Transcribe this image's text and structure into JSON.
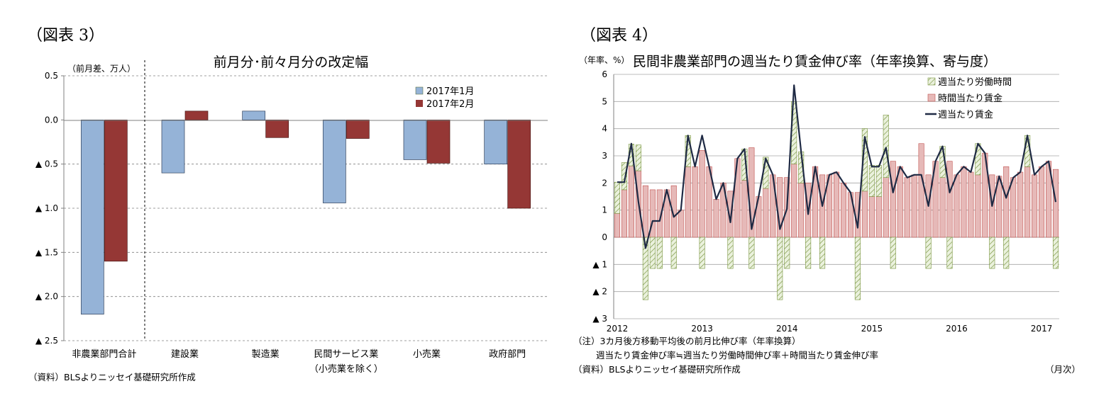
{
  "figures": [
    {
      "label": "（図表 3）"
    },
    {
      "label": "（図表 4）"
    }
  ],
  "chart_data": [
    {
      "type": "bar",
      "title": "前月分･前々月分の改定幅",
      "unit_label": "（前月差、万人）",
      "ylim": [
        -2.5,
        0.5
      ],
      "y_ticks": [
        {
          "value": 0.5,
          "label": "0.5"
        },
        {
          "value": 0.0,
          "label": "0.0"
        },
        {
          "value": -0.5,
          "label": "▲ 0.5"
        },
        {
          "value": -1.0,
          "label": "▲ 1.0"
        },
        {
          "value": -1.5,
          "label": "▲ 1.5"
        },
        {
          "value": -2.0,
          "label": "▲ 2.0"
        },
        {
          "value": -2.5,
          "label": "▲ 2.5"
        }
      ],
      "categories": [
        "非農業部門合計",
        "建設業",
        "製造業",
        "民間サービス業",
        "小売業",
        "政府部門"
      ],
      "category_sublabels": [
        "",
        "",
        "",
        "（小売業を除く）",
        "",
        ""
      ],
      "series": [
        {
          "name": "2017年1月",
          "color": "#95B3D7",
          "values": [
            -2.2,
            -0.6,
            0.1,
            -0.94,
            -0.45,
            -0.5
          ]
        },
        {
          "name": "2017年2月",
          "color": "#953735",
          "values": [
            -1.6,
            0.1,
            -0.2,
            -0.21,
            -0.49,
            -1.0
          ]
        }
      ],
      "grid": "horizontal dashed",
      "legend_position": "top-right",
      "source": "（資料）BLSよりニッセイ基礎研究所作成"
    },
    {
      "type": "bar+line",
      "title": "民間非農業部門の週当たり賃金伸び率（年率換算、寄与度）",
      "unit_label": "（年率、%）",
      "ylim": [
        -3,
        6
      ],
      "y_ticks": [
        {
          "value": 6,
          "label": "6"
        },
        {
          "value": 5,
          "label": "5"
        },
        {
          "value": 4,
          "label": "4"
        },
        {
          "value": 3,
          "label": "3"
        },
        {
          "value": 2,
          "label": "2"
        },
        {
          "value": 1,
          "label": "1"
        },
        {
          "value": 0,
          "label": "0"
        },
        {
          "value": -1,
          "label": "▲ 1"
        },
        {
          "value": -2,
          "label": "▲ 2"
        },
        {
          "value": -3,
          "label": "▲ 3"
        }
      ],
      "x_labels": [
        "2012",
        "2013",
        "2014",
        "2015",
        "2016",
        "2017"
      ],
      "x_unit": "（月次）",
      "months": [
        "2012-01",
        "2012-02",
        "2012-03",
        "2012-04",
        "2012-05",
        "2012-06",
        "2012-07",
        "2012-08",
        "2012-09",
        "2012-10",
        "2012-11",
        "2012-12",
        "2013-01",
        "2013-02",
        "2013-03",
        "2013-04",
        "2013-05",
        "2013-06",
        "2013-07",
        "2013-08",
        "2013-09",
        "2013-10",
        "2013-11",
        "2013-12",
        "2014-01",
        "2014-02",
        "2014-03",
        "2014-04",
        "2014-05",
        "2014-06",
        "2014-07",
        "2014-08",
        "2014-09",
        "2014-10",
        "2014-11",
        "2014-12",
        "2015-01",
        "2015-02",
        "2015-03",
        "2015-04",
        "2015-05",
        "2015-06",
        "2015-07",
        "2015-08",
        "2015-09",
        "2015-10",
        "2015-11",
        "2015-12",
        "2016-01",
        "2016-02",
        "2016-03",
        "2016-04",
        "2016-05",
        "2016-06",
        "2016-07",
        "2016-08",
        "2016-09",
        "2016-10",
        "2016-11",
        "2016-12",
        "2017-01",
        "2017-02",
        "2017-03"
      ],
      "series": [
        {
          "name": "週当たり労働時間",
          "color": "#D7E4BD",
          "style": "hatched",
          "values": [
            1.15,
            1.0,
            0.8,
            0.95,
            -2.3,
            -1.15,
            -1.15,
            0,
            -1.15,
            0,
            1.15,
            0,
            -1.15,
            0,
            0,
            0,
            -1.15,
            0,
            1.15,
            -1.15,
            0,
            1.15,
            0,
            -2.3,
            -1.15,
            2.3,
            1.15,
            -1.15,
            0,
            -1.15,
            0,
            0,
            0,
            0,
            -2.3,
            2.3,
            1.15,
            1.15,
            2.3,
            -1.15,
            0,
            0,
            0,
            0,
            -1.15,
            0,
            1.15,
            -1.15,
            0,
            0,
            0,
            1.15,
            0,
            -1.15,
            0,
            -1.15,
            0,
            0,
            1.15,
            0,
            0,
            0,
            -1.15
          ]
        },
        {
          "name": "時間当たり賃金",
          "color": "#E6B9B8",
          "values": [
            0.88,
            1.75,
            2.63,
            2.45,
            1.9,
            1.75,
            1.75,
            1.75,
            1.9,
            1.0,
            2.6,
            2.6,
            3.2,
            2.6,
            1.4,
            2.0,
            1.7,
            2.9,
            2.1,
            3.3,
            1.5,
            1.8,
            2.3,
            2.2,
            2.2,
            2.7,
            2.0,
            2.0,
            2.6,
            2.3,
            2.3,
            2.4,
            2.0,
            1.65,
            1.65,
            1.7,
            1.5,
            1.5,
            2.2,
            2.8,
            2.6,
            2.2,
            2.3,
            3.45,
            2.3,
            2.8,
            2.2,
            2.8,
            2.3,
            2.6,
            2.4,
            2.3,
            3.1,
            2.3,
            2.25,
            2.6,
            2.2,
            2.4,
            2.6,
            2.3,
            2.6,
            2.8,
            2.5
          ]
        },
        {
          "name": "週当たり賃金",
          "color": "#1F2A44",
          "style": "line",
          "values": [
            2.03,
            2.03,
            3.45,
            1.3,
            -0.4,
            0.6,
            0.6,
            1.75,
            0.75,
            1.0,
            3.75,
            2.6,
            3.75,
            2.6,
            1.4,
            2.0,
            0.55,
            2.9,
            3.25,
            0.3,
            1.5,
            2.9,
            2.3,
            0.3,
            1.05,
            5.6,
            3.15,
            0.85,
            2.6,
            1.15,
            2.3,
            2.4,
            2.0,
            1.65,
            0.35,
            3.7,
            2.6,
            2.6,
            3.3,
            1.65,
            2.6,
            2.2,
            2.3,
            2.3,
            1.15,
            2.8,
            3.35,
            1.65,
            2.3,
            2.6,
            2.4,
            3.45,
            3.1,
            1.15,
            2.25,
            1.45,
            2.2,
            2.4,
            3.75,
            2.3,
            2.6,
            2.8,
            1.3
          ]
        }
      ],
      "grid": "horizontal solid",
      "legend_position": "top-right",
      "notes": [
        "（注）3カ月後方移動平均後の前月比伸び率（年率換算）",
        "週当たり賃金伸び率≒週当たり労働時間伸び率＋時間当たり賃金伸び率"
      ],
      "source": "（資料）BLSよりニッセイ基礎研究所作成"
    }
  ]
}
